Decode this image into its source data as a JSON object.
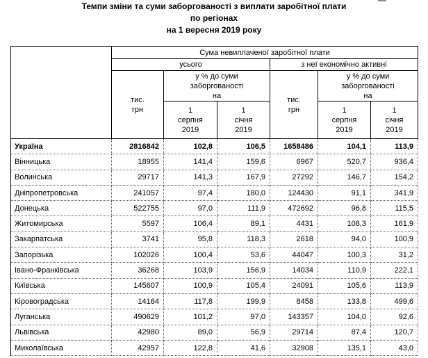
{
  "colors": {
    "background": "#ffffff",
    "text": "#000000",
    "solid_border": "#000000",
    "dotted_border": "#595959"
  },
  "title": {
    "line1": "Темпи зміни та суми заборгованості з виплати заробітної плати",
    "line2": "по регіонах",
    "line3": "на 1 вересня 2019 року"
  },
  "table": {
    "header": {
      "region_column": "",
      "top": "Сума невиплаченої заробітної плати",
      "group_total": "усього",
      "group_active": "з неї економічно активні",
      "unit": "тис.\nгрн",
      "pct_of_debt": "у % до суми\nзаборгованості\nна",
      "date_aug": "1\nсерпня\n2019",
      "date_jan": "1\nсічня\n2019"
    },
    "rows": [
      {
        "region": "Україна",
        "bold": true,
        "values": [
          "2816842",
          "102,8",
          "106,5",
          "1658486",
          "104,1",
          "113,9"
        ]
      },
      {
        "region": "Вінницька",
        "bold": false,
        "values": [
          "18955",
          "141,4",
          "159,6",
          "6967",
          "520,7",
          "936,4"
        ]
      },
      {
        "region": "Волинська",
        "bold": false,
        "values": [
          "29717",
          "141,3",
          "167,9",
          "27292",
          "146,7",
          "154,2"
        ]
      },
      {
        "region": "Дніпропетровська",
        "bold": false,
        "values": [
          "241057",
          "97,4",
          "180,0",
          "124430",
          "91,1",
          "341,9"
        ]
      },
      {
        "region": "Донецька",
        "bold": false,
        "values": [
          "522755",
          "97,0",
          "111,9",
          "472692",
          "96,8",
          "115,5"
        ]
      },
      {
        "region": "Житомирська",
        "bold": false,
        "values": [
          "5597",
          "106,4",
          "89,1",
          "4431",
          "108,3",
          "161,9"
        ]
      },
      {
        "region": "Закарпатська",
        "bold": false,
        "values": [
          "3741",
          "95,8",
          "118,3",
          "2618",
          "94,0",
          "100,9"
        ]
      },
      {
        "region": "Запорізька",
        "bold": false,
        "values": [
          "102026",
          "100,4",
          "53,6",
          "44047",
          "100,3",
          "31,2"
        ]
      },
      {
        "region": "Івано-Франківська",
        "bold": false,
        "values": [
          "36268",
          "103,9",
          "156,9",
          "14034",
          "110,9",
          "222,1"
        ]
      },
      {
        "region": "Київська",
        "bold": false,
        "values": [
          "145607",
          "100,9",
          "105,4",
          "24091",
          "105,6",
          "113,9"
        ]
      },
      {
        "region": "Кіровоградська",
        "bold": false,
        "values": [
          "14164",
          "117,8",
          "199,9",
          "8458",
          "133,8",
          "499,6"
        ]
      },
      {
        "region": "Луганська",
        "bold": false,
        "values": [
          "490629",
          "101,2",
          "97,0",
          "143357",
          "104,0",
          "92,6"
        ]
      },
      {
        "region": "Львівська",
        "bold": false,
        "values": [
          "42980",
          "89,0",
          "56,9",
          "29714",
          "87,4",
          "120,7"
        ]
      },
      {
        "region": "Миколаївська",
        "bold": false,
        "values": [
          "42957",
          "122,8",
          "41,6",
          "32908",
          "135,1",
          "43,0"
        ]
      }
    ]
  }
}
